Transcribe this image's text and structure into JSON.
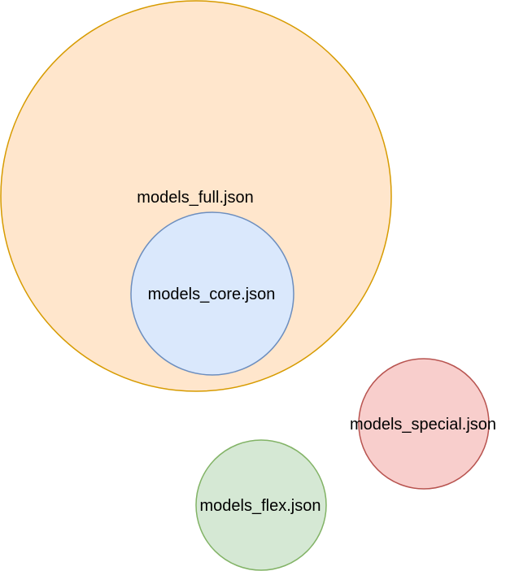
{
  "diagram": {
    "nodes": [
      {
        "id": "models-full",
        "label": "models_full.json",
        "fill": "#ffe6cc",
        "stroke": "#d79b00"
      },
      {
        "id": "models-core",
        "label": "models_core.json",
        "fill": "#dae8fc",
        "stroke": "#6c8ebf"
      },
      {
        "id": "models-special",
        "label": "models_special.json",
        "fill": "#f8cecc",
        "stroke": "#b85450"
      },
      {
        "id": "models-flex",
        "label": "models_flex.json",
        "fill": "#d5e8d4",
        "stroke": "#82b366"
      }
    ]
  }
}
